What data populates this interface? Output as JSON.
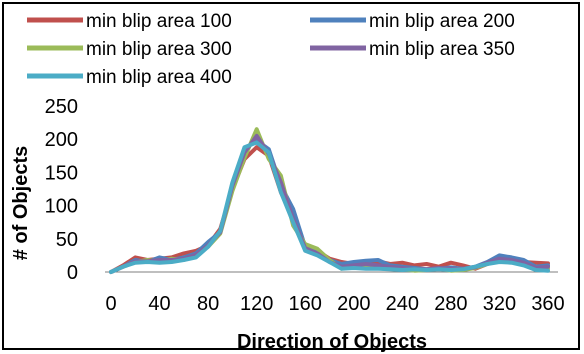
{
  "chart_data": {
    "type": "line",
    "title": "",
    "xlabel": "Direction of Objects",
    "ylabel": "# of Objects",
    "xlim": [
      0,
      360
    ],
    "ylim": [
      0,
      250
    ],
    "x_ticks": [
      0,
      40,
      80,
      120,
      160,
      200,
      240,
      280,
      320,
      360
    ],
    "y_ticks": [
      0,
      50,
      100,
      150,
      200,
      250
    ],
    "grid": false,
    "legend_position": "top",
    "x": [
      0,
      10,
      20,
      30,
      40,
      50,
      60,
      70,
      80,
      90,
      100,
      110,
      120,
      130,
      140,
      150,
      160,
      170,
      180,
      190,
      200,
      210,
      220,
      230,
      240,
      250,
      260,
      270,
      280,
      290,
      300,
      310,
      320,
      330,
      340,
      350,
      360
    ],
    "series": [
      {
        "name": "min blip area 100",
        "color": "#c0504d",
        "values": [
          0,
          10,
          22,
          18,
          20,
          22,
          28,
          32,
          40,
          65,
          125,
          170,
          188,
          175,
          120,
          80,
          40,
          32,
          20,
          15,
          12,
          14,
          16,
          12,
          14,
          10,
          12,
          8,
          14,
          10,
          5,
          12,
          18,
          20,
          15,
          14,
          13
        ]
      },
      {
        "name": "min blip area 200",
        "color": "#4f81bd",
        "values": [
          0,
          8,
          18,
          15,
          22,
          18,
          22,
          28,
          45,
          60,
          128,
          185,
          198,
          185,
          130,
          95,
          38,
          30,
          18,
          12,
          15,
          17,
          18,
          10,
          8,
          6,
          4,
          5,
          7,
          5,
          8,
          15,
          25,
          22,
          18,
          8,
          10
        ]
      },
      {
        "name": "min blip area 300",
        "color": "#9bbb59",
        "values": [
          0,
          8,
          15,
          18,
          15,
          20,
          18,
          25,
          38,
          58,
          122,
          172,
          215,
          170,
          145,
          70,
          42,
          35,
          18,
          5,
          8,
          10,
          8,
          6,
          4,
          2,
          3,
          5,
          2,
          3,
          6,
          12,
          18,
          15,
          12,
          4,
          5
        ]
      },
      {
        "name": "min blip area 350",
        "color": "#8064a2",
        "values": [
          0,
          8,
          16,
          16,
          18,
          18,
          20,
          26,
          40,
          60,
          130,
          180,
          205,
          178,
          135,
          80,
          36,
          28,
          15,
          8,
          10,
          12,
          10,
          8,
          6,
          4,
          4,
          6,
          5,
          5,
          7,
          14,
          20,
          18,
          14,
          6,
          8
        ]
      },
      {
        "name": "min blip area 400",
        "color": "#4bacc6",
        "values": [
          0,
          8,
          14,
          15,
          14,
          15,
          18,
          22,
          38,
          62,
          135,
          188,
          195,
          180,
          120,
          75,
          32,
          25,
          15,
          5,
          6,
          5,
          5,
          4,
          3,
          4,
          3,
          4,
          3,
          4,
          8,
          12,
          15,
          14,
          10,
          3,
          2
        ]
      }
    ]
  }
}
